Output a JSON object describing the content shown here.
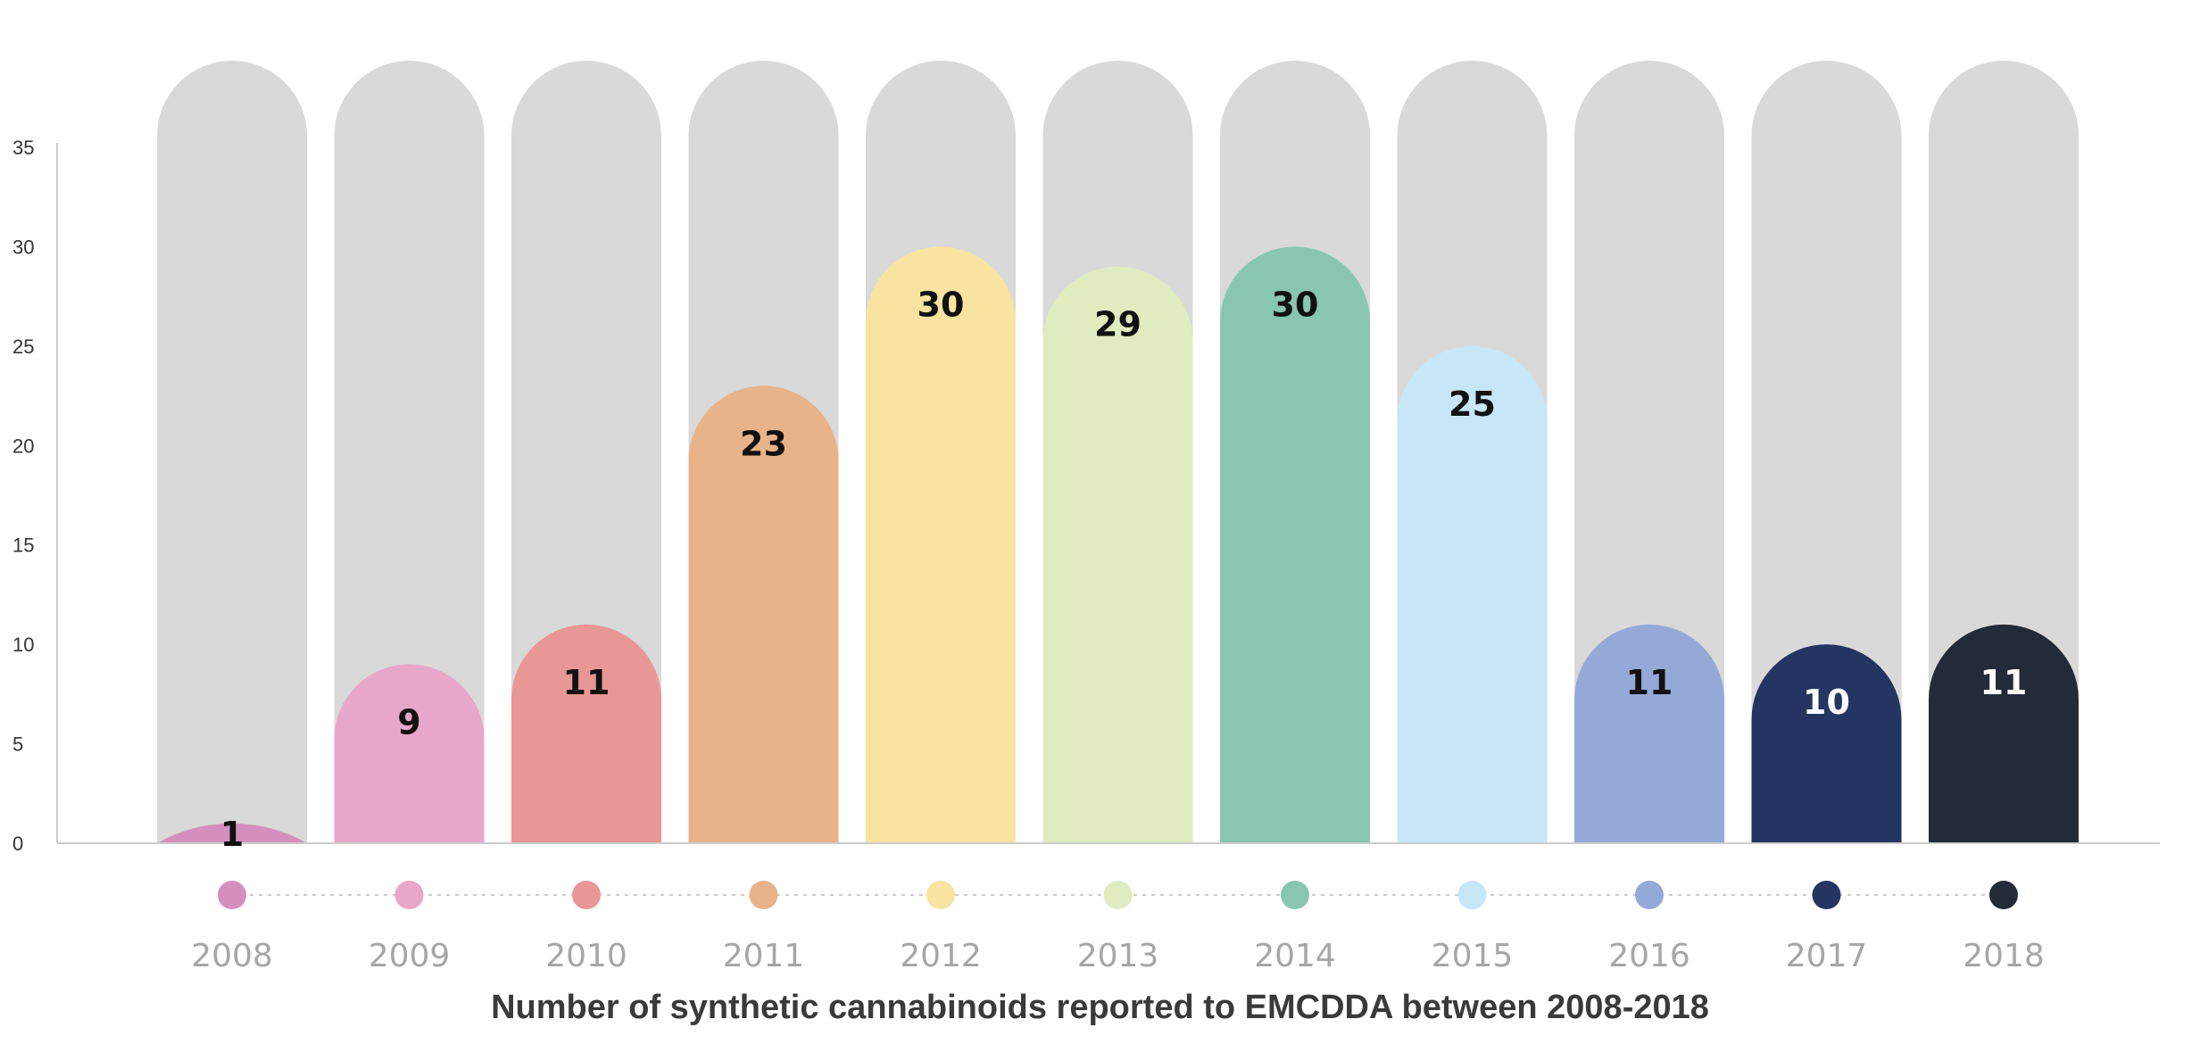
{
  "chart_data": {
    "type": "bar",
    "title": "Number of synthetic cannabinoids reported to EMCDDA between 2008-2018",
    "xlabel": "",
    "ylabel": "",
    "ylim": [
      0,
      35
    ],
    "yticks": [
      0,
      5,
      10,
      15,
      20,
      25,
      30,
      35
    ],
    "categories": [
      "2008",
      "2009",
      "2010",
      "2011",
      "2012",
      "2013",
      "2014",
      "2015",
      "2016",
      "2017",
      "2018"
    ],
    "values": [
      1,
      9,
      11,
      23,
      30,
      29,
      30,
      25,
      11,
      10,
      11
    ],
    "colors": [
      "#d48fbf",
      "#e8a6c8",
      "#e89696",
      "#e9b38a",
      "#f8e4a0",
      "#e1ebc0",
      "#89c6b0",
      "#c7e6f8",
      "#94a9d7",
      "#253561",
      "#232a38"
    ],
    "label_colors": [
      "#111111",
      "#111111",
      "#111111",
      "#111111",
      "#111111",
      "#111111",
      "#111111",
      "#111111",
      "#111111",
      "#ffffff",
      "#ffffff"
    ],
    "background_bar_color": "#d9d9d9",
    "axis_color": "#cccccc",
    "grid": false,
    "legend": "none"
  }
}
